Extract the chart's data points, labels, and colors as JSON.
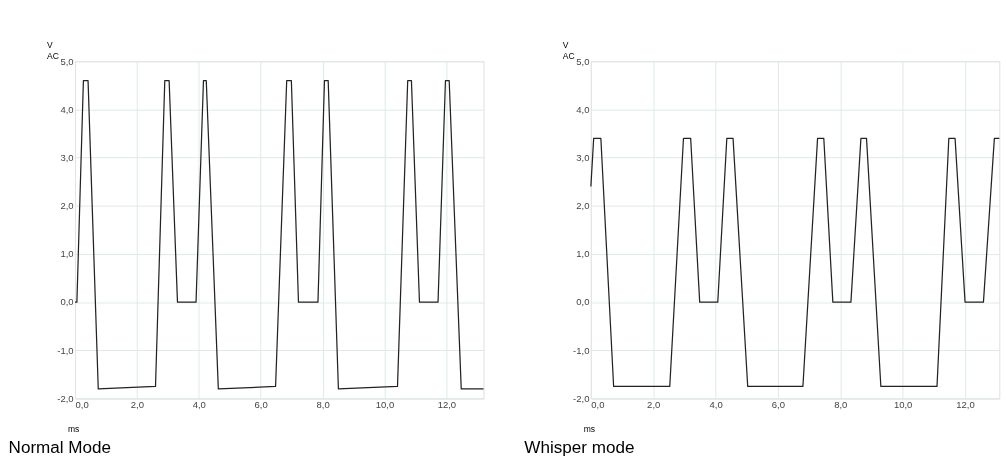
{
  "chart_data": [
    {
      "type": "line",
      "title": "Normal Mode",
      "xlabel": "ms",
      "ylabel": "V AC",
      "grid": true,
      "xlim": [
        0,
        13.2
      ],
      "ylim": [
        -2,
        5
      ],
      "xticks": [
        {
          "value": 0,
          "label": "0,0"
        },
        {
          "value": 2,
          "label": "2,0"
        },
        {
          "value": 4,
          "label": "4,0"
        },
        {
          "value": 6,
          "label": "6,0"
        },
        {
          "value": 8,
          "label": "8,0"
        },
        {
          "value": 10,
          "label": "10,0"
        },
        {
          "value": 12,
          "label": "12,0"
        }
      ],
      "yticks": [
        {
          "value": -2,
          "label": "-2,0"
        },
        {
          "value": -1,
          "label": "-1,0"
        },
        {
          "value": 0,
          "label": "0,0"
        },
        {
          "value": 1,
          "label": "1,0"
        },
        {
          "value": 2,
          "label": "2,0"
        },
        {
          "value": 3,
          "label": "3,0"
        },
        {
          "value": 4,
          "label": "4,0"
        },
        {
          "value": 5,
          "label": "5,0"
        }
      ],
      "series": [
        {
          "color": "#222222",
          "x": [
            0,
            0.06,
            0.27,
            0.42,
            0.75,
            2.6,
            2.9,
            3.04,
            3.31,
            3.91,
            4.15,
            4.24,
            4.63,
            6.48,
            6.84,
            6.99,
            7.22,
            7.85,
            8.06,
            8.18,
            8.51,
            10.42,
            10.75,
            10.87,
            11.13,
            11.73,
            11.97,
            12.09,
            12.48,
            13.2
          ],
          "values": [
            0,
            0,
            4.6,
            4.6,
            -1.8,
            -1.75,
            4.6,
            4.6,
            0,
            0,
            4.6,
            4.6,
            -1.8,
            -1.75,
            4.6,
            4.6,
            0,
            0,
            4.6,
            4.6,
            -1.8,
            -1.75,
            4.6,
            4.6,
            0,
            0,
            4.6,
            4.6,
            -1.8,
            -1.8
          ]
        }
      ]
    },
    {
      "type": "line",
      "title": "Whisper mode",
      "xlabel": "ms",
      "ylabel": "V AC",
      "grid": true,
      "xlim": [
        0,
        13.1
      ],
      "ylim": [
        -2,
        5
      ],
      "xticks": [
        {
          "value": 0,
          "label": "0,0"
        },
        {
          "value": 2,
          "label": "2,0"
        },
        {
          "value": 4,
          "label": "4,0"
        },
        {
          "value": 6,
          "label": "6,0"
        },
        {
          "value": 8,
          "label": "8,0"
        },
        {
          "value": 10,
          "label": "10,0"
        },
        {
          "value": 12,
          "label": "12,0"
        }
      ],
      "yticks": [
        {
          "value": -2,
          "label": "-2,0"
        },
        {
          "value": -1,
          "label": "-1,0"
        },
        {
          "value": 0,
          "label": "0,0"
        },
        {
          "value": 1,
          "label": "1,0"
        },
        {
          "value": 2,
          "label": "2,0"
        },
        {
          "value": 3,
          "label": "3,0"
        },
        {
          "value": 4,
          "label": "4,0"
        },
        {
          "value": 5,
          "label": "5,0"
        }
      ],
      "series": [
        {
          "color": "#222222",
          "x": [
            0,
            0.09,
            0.32,
            0.73,
            2.53,
            2.97,
            3.2,
            3.49,
            4.07,
            4.36,
            4.56,
            5.03,
            6.8,
            7.27,
            7.47,
            7.76,
            8.34,
            8.66,
            8.84,
            9.3,
            11.1,
            11.48,
            11.68,
            12.0,
            12.59,
            12.94,
            13.1
          ],
          "values": [
            2.4,
            3.4,
            3.4,
            -1.75,
            -1.75,
            3.4,
            3.4,
            0,
            0,
            3.4,
            3.4,
            -1.75,
            -1.75,
            3.4,
            3.4,
            0,
            0,
            3.4,
            3.4,
            -1.75,
            -1.75,
            3.4,
            3.4,
            0,
            0,
            3.4,
            3.4
          ]
        }
      ]
    }
  ]
}
